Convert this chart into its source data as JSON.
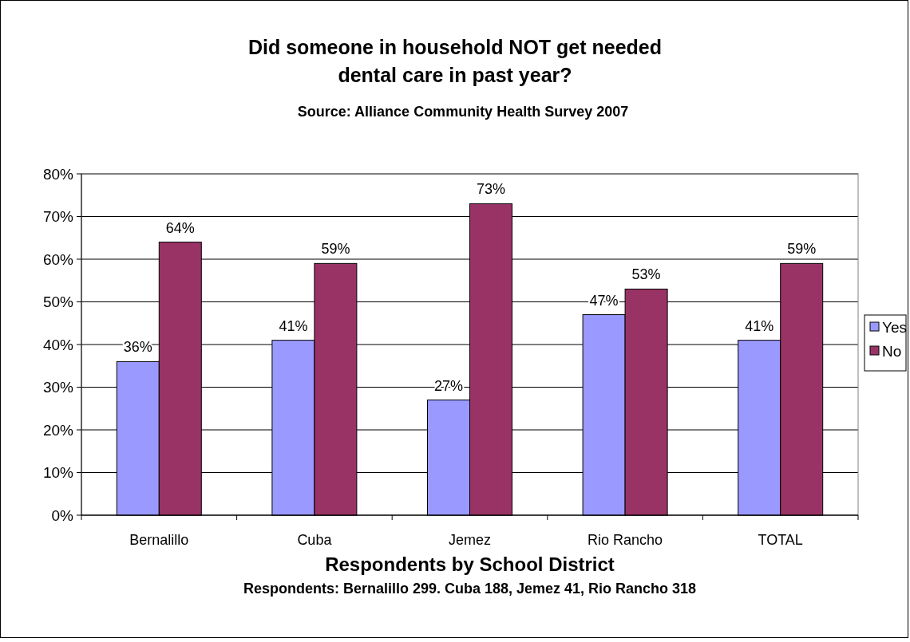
{
  "chart_data": {
    "type": "bar",
    "title": "Did someone in household NOT get needed dental care in past year?",
    "subtitle": "Source:  Alliance Community Health Survey 2007",
    "xlabel": "Respondents by School District",
    "annotations": [
      "Respondents: Bernalillo 299. Cuba 188, Jemez 41, Rio Rancho 318"
    ],
    "categories": [
      "Bernalillo",
      "Cuba",
      "Jemez",
      "Rio Rancho",
      "TOTAL"
    ],
    "series": [
      {
        "name": "Yes",
        "color": "#9999ff",
        "values": [
          36,
          41,
          27,
          47,
          41
        ],
        "value_labels": [
          "36%",
          "41%",
          "27%",
          "47%",
          "41%"
        ]
      },
      {
        "name": "No",
        "color": "#993366",
        "values": [
          64,
          59,
          73,
          53,
          59
        ],
        "value_labels": [
          "64%",
          "59%",
          "73%",
          "53%",
          "59%"
        ]
      }
    ],
    "ylim": [
      0,
      80
    ],
    "yticks": [
      {
        "value": 0,
        "label": "0%"
      },
      {
        "value": 10,
        "label": "10%"
      },
      {
        "value": 20,
        "label": "20%"
      },
      {
        "value": 30,
        "label": "30%"
      },
      {
        "value": 40,
        "label": "40%"
      },
      {
        "value": 50,
        "label": "50%"
      },
      {
        "value": 60,
        "label": "60%"
      },
      {
        "value": 70,
        "label": "70%"
      },
      {
        "value": 80,
        "label": "80%"
      }
    ],
    "grid": "y",
    "legend": "right"
  }
}
